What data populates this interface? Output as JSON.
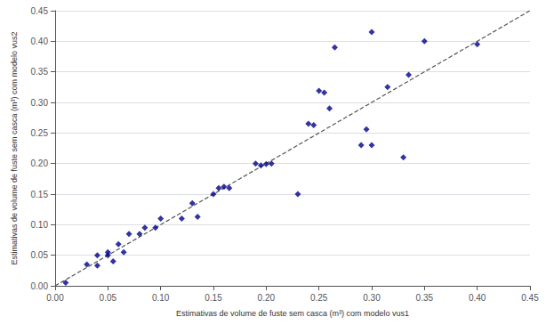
{
  "chart_data": {
    "type": "scatter",
    "xlabel": "Estimativas de volume de fuste sem casca (m³) com modelo vus1",
    "ylabel": "Estimativas de volume de fuste sem casca (m³) com modelo vus2",
    "series": [
      {
        "type": "scatter",
        "marker": "diamond",
        "color": "#00008B",
        "x": [
          0.01,
          0.03,
          0.04,
          0.04,
          0.05,
          0.05,
          0.055,
          0.06,
          0.065,
          0.07,
          0.08,
          0.085,
          0.095,
          0.1,
          0.12,
          0.13,
          0.135,
          0.15,
          0.155,
          0.16,
          0.165,
          0.19,
          0.195,
          0.2,
          0.205,
          0.23,
          0.24,
          0.245,
          0.25,
          0.255,
          0.26,
          0.265,
          0.29,
          0.295,
          0.3,
          0.3,
          0.315,
          0.33,
          0.335,
          0.35,
          0.4
        ],
        "values": [
          0.005,
          0.035,
          0.05,
          0.033,
          0.05,
          0.055,
          0.04,
          0.068,
          0.055,
          0.085,
          0.085,
          0.095,
          0.095,
          0.11,
          0.11,
          0.135,
          0.113,
          0.15,
          0.16,
          0.162,
          0.16,
          0.2,
          0.197,
          0.199,
          0.2,
          0.15,
          0.265,
          0.263,
          0.319,
          0.316,
          0.29,
          0.39,
          0.23,
          0.256,
          0.23,
          0.415,
          0.325,
          0.21,
          0.345,
          0.4,
          0.395
        ]
      },
      {
        "type": "line",
        "line_style": "dashed",
        "color": "#555555",
        "x": [
          0.0,
          0.45
        ],
        "values": [
          0.0,
          0.45
        ]
      }
    ],
    "xlim": [
      0.0,
      0.45
    ],
    "ylim": [
      0.0,
      0.45
    ],
    "xticks": [
      {
        "value": 0.0,
        "label": "0.00"
      },
      0.05,
      {
        "value": 0.1,
        "label": "0.10"
      },
      0.15,
      {
        "value": 0.2,
        "label": "0.20"
      },
      0.25,
      {
        "value": 0.3,
        "label": "0.30"
      },
      0.35,
      {
        "value": 0.4,
        "label": "0.40"
      },
      0.45
    ],
    "yticks": [
      {
        "value": 0.0,
        "label": "0.00"
      },
      0.05,
      {
        "value": 0.1,
        "label": "0.10"
      },
      0.15,
      {
        "value": 0.2,
        "label": "0.20"
      },
      0.25,
      {
        "value": 0.3,
        "label": "0.30"
      },
      0.35,
      {
        "value": 0.4,
        "label": "0.40"
      },
      0.45
    ],
    "grid": "y"
  }
}
